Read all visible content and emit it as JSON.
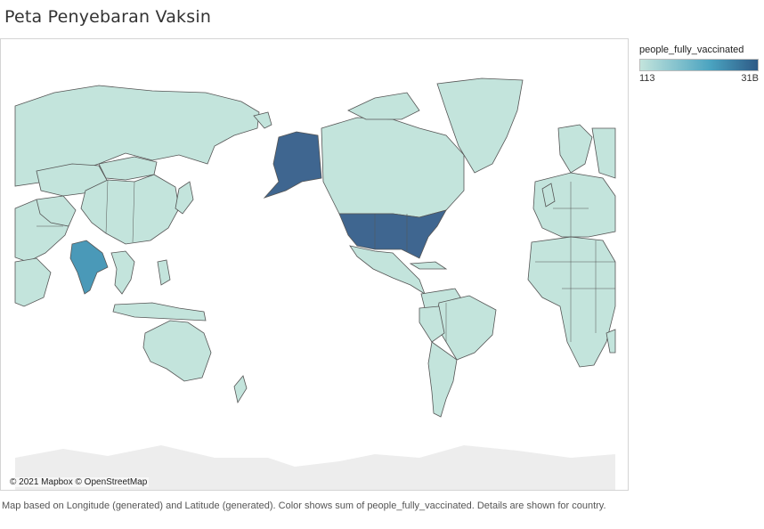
{
  "title": "Peta Penyebaran Vaksin",
  "legend": {
    "title": "people_fully_vaccinated",
    "min_label": "113",
    "max_label": "31B",
    "colors": {
      "low": "#c3e4dc",
      "mid": "#4aa3c0",
      "high": "#2e5a86"
    }
  },
  "map": {
    "attribution": "© 2021 Mapbox © OpenStreetMap",
    "colors": {
      "ocean": "#ffffff",
      "land_low": "#c3e4dc",
      "land_high": "#3f6690",
      "land_mid": "#4a99b8",
      "border": "#555555",
      "antarctica": "#ededed"
    },
    "highlighted_countries": [
      "United States",
      "India"
    ]
  },
  "caption": "Map based on Longitude (generated) and Latitude (generated).  Color shows sum of people_fully_vaccinated.  Details are shown for country."
}
